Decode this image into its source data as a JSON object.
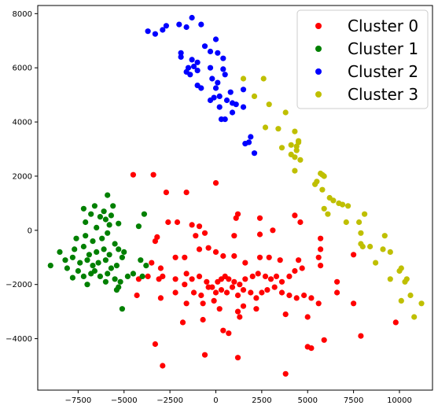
{
  "chart_data": {
    "type": "scatter",
    "title": "",
    "xlabel": "",
    "ylabel": "",
    "xlim": [
      -9700,
      11800
    ],
    "ylim": [
      -5900,
      8300
    ],
    "xticks": [
      -7500,
      -5000,
      -2500,
      0,
      2500,
      5000,
      7500,
      10000
    ],
    "xtick_labels": [
      "−7500",
      "−5000",
      "−2500",
      "0",
      "2500",
      "5000",
      "7500",
      "10000"
    ],
    "yticks": [
      -4000,
      -2000,
      0,
      2000,
      4000,
      6000,
      8000
    ],
    "ytick_labels": [
      "−4000",
      "−2000",
      "0",
      "2000",
      "4000",
      "6000",
      "8000"
    ],
    "grid": false,
    "legend_position": "top-right",
    "series": [
      {
        "name": "Cluster 0",
        "color": "#ff0000",
        "points": [
          [
            -4500,
            2050
          ],
          [
            -3400,
            2050
          ],
          [
            -2700,
            1400
          ],
          [
            -1600,
            1400
          ],
          [
            0,
            1750
          ],
          [
            -3200,
            -250
          ],
          [
            -3300,
            -400
          ],
          [
            -2600,
            300
          ],
          [
            -2100,
            300
          ],
          [
            -1300,
            200
          ],
          [
            -900,
            150
          ],
          [
            -1100,
            -200
          ],
          [
            -600,
            -100
          ],
          [
            1100,
            450
          ],
          [
            1200,
            600
          ],
          [
            2400,
            450
          ],
          [
            1000,
            -200
          ],
          [
            2400,
            -150
          ],
          [
            3100,
            0
          ],
          [
            4300,
            550
          ],
          [
            4600,
            300
          ],
          [
            5700,
            -300
          ],
          [
            5700,
            -700
          ],
          [
            5600,
            -1000
          ],
          [
            5700,
            -1300
          ],
          [
            7500,
            -900
          ],
          [
            -3500,
            -1200
          ],
          [
            -3000,
            -1400
          ],
          [
            -2200,
            -1000
          ],
          [
            -1700,
            -1000
          ],
          [
            -900,
            -700
          ],
          [
            -400,
            -650
          ],
          [
            0,
            -800
          ],
          [
            400,
            -950
          ],
          [
            1000,
            -950
          ],
          [
            1600,
            -1200
          ],
          [
            2400,
            -1000
          ],
          [
            2900,
            -1000
          ],
          [
            3500,
            -1100
          ],
          [
            4500,
            -1100
          ],
          [
            -4200,
            -1800
          ],
          [
            -3700,
            -1700
          ],
          [
            -3100,
            -1800
          ],
          [
            -2900,
            -1700
          ],
          [
            -2200,
            -1800
          ],
          [
            -1600,
            -1600
          ],
          [
            -1300,
            -1800
          ],
          [
            -900,
            -1700
          ],
          [
            -500,
            -1900
          ],
          [
            -200,
            -2100
          ],
          [
            100,
            -1900
          ],
          [
            300,
            -1800
          ],
          [
            500,
            -1700
          ],
          [
            700,
            -1800
          ],
          [
            1000,
            -1900
          ],
          [
            1300,
            -2000
          ],
          [
            1600,
            -1800
          ],
          [
            2000,
            -1700
          ],
          [
            2300,
            -1600
          ],
          [
            2700,
            -1700
          ],
          [
            3000,
            -1800
          ],
          [
            3300,
            -1700
          ],
          [
            3600,
            -1900
          ],
          [
            4000,
            -1700
          ],
          [
            4300,
            -1500
          ],
          [
            4700,
            -1400
          ],
          [
            -4300,
            -2400
          ],
          [
            -3000,
            -2500
          ],
          [
            -2200,
            -2300
          ],
          [
            -1700,
            -2000
          ],
          [
            -1200,
            -2300
          ],
          [
            -800,
            -2400
          ],
          [
            -400,
            -2100
          ],
          [
            0,
            -2300
          ],
          [
            300,
            -2200
          ],
          [
            600,
            -2300
          ],
          [
            900,
            -2100
          ],
          [
            1200,
            -2400
          ],
          [
            1500,
            -2200
          ],
          [
            1900,
            -2300
          ],
          [
            2200,
            -2500
          ],
          [
            2500,
            -2300
          ],
          [
            2800,
            -2200
          ],
          [
            3200,
            -2100
          ],
          [
            3600,
            -2300
          ],
          [
            4000,
            -2400
          ],
          [
            4400,
            -2500
          ],
          [
            4800,
            -2400
          ],
          [
            5200,
            -2500
          ],
          [
            5600,
            -2700
          ],
          [
            6600,
            -2300
          ],
          [
            7500,
            -2700
          ],
          [
            -1600,
            -2700
          ],
          [
            -700,
            -2700
          ],
          [
            -100,
            -2600
          ],
          [
            200,
            -2900
          ],
          [
            1200,
            -3000
          ],
          [
            1500,
            -2800
          ],
          [
            2200,
            -2900
          ],
          [
            3800,
            -3100
          ],
          [
            5000,
            -3200
          ],
          [
            6600,
            -1900
          ],
          [
            9800,
            -3400
          ],
          [
            -700,
            -3300
          ],
          [
            -1800,
            -3400
          ],
          [
            400,
            -3700
          ],
          [
            700,
            -3800
          ],
          [
            1300,
            -3200
          ],
          [
            -3300,
            -4200
          ],
          [
            -600,
            -4600
          ],
          [
            1200,
            -4700
          ],
          [
            5000,
            -4300
          ],
          [
            5200,
            -4350
          ],
          [
            5900,
            -4050
          ],
          [
            7900,
            -3900
          ],
          [
            -2900,
            -5000
          ],
          [
            3800,
            -5300
          ]
        ]
      },
      {
        "name": "Cluster 1",
        "color": "#008000",
        "points": [
          [
            -5900,
            1300
          ],
          [
            -6600,
            900
          ],
          [
            -7200,
            800
          ],
          [
            -6100,
            700
          ],
          [
            -5600,
            900
          ],
          [
            -6800,
            600
          ],
          [
            -6300,
            500
          ],
          [
            -6000,
            400
          ],
          [
            -5700,
            550
          ],
          [
            -3900,
            600
          ],
          [
            -7100,
            300
          ],
          [
            -6500,
            100
          ],
          [
            -5800,
            200
          ],
          [
            -5300,
            250
          ],
          [
            -4200,
            150
          ],
          [
            -7600,
            -300
          ],
          [
            -7100,
            -200
          ],
          [
            -6700,
            -400
          ],
          [
            -6200,
            -300
          ],
          [
            -5900,
            -100
          ],
          [
            -5500,
            -500
          ],
          [
            -8500,
            -800
          ],
          [
            -7700,
            -700
          ],
          [
            -7200,
            -600
          ],
          [
            -6900,
            -900
          ],
          [
            -6500,
            -800
          ],
          [
            -6100,
            -700
          ],
          [
            -5800,
            -900
          ],
          [
            -5300,
            -700
          ],
          [
            -5000,
            -800
          ],
          [
            -8200,
            -1100
          ],
          [
            -7800,
            -1000
          ],
          [
            -7400,
            -1200
          ],
          [
            -7000,
            -1100
          ],
          [
            -6700,
            -1300
          ],
          [
            -6400,
            -1200
          ],
          [
            -6000,
            -1100
          ],
          [
            -5700,
            -1400
          ],
          [
            -5400,
            -1300
          ],
          [
            -5100,
            -1000
          ],
          [
            -4100,
            -1100
          ],
          [
            -3800,
            -1300
          ],
          [
            -9000,
            -1300
          ],
          [
            -8100,
            -1400
          ],
          [
            -7500,
            -1500
          ],
          [
            -7200,
            -1700
          ],
          [
            -6800,
            -1600
          ],
          [
            -6600,
            -1500
          ],
          [
            -6300,
            -1700
          ],
          [
            -5900,
            -1600
          ],
          [
            -5500,
            -1800
          ],
          [
            -5200,
            -1900
          ],
          [
            -4800,
            -1700
          ],
          [
            -4500,
            -1600
          ],
          [
            -4000,
            -1700
          ],
          [
            -7800,
            -1750
          ],
          [
            -7000,
            -2000
          ],
          [
            -6000,
            -1900
          ],
          [
            -5300,
            -2100
          ],
          [
            -5400,
            -2200
          ],
          [
            -5100,
            -2900
          ]
        ]
      },
      {
        "name": "Cluster 2",
        "color": "#0000ff",
        "points": [
          [
            -1300,
            7850
          ],
          [
            -800,
            7600
          ],
          [
            -1600,
            7500
          ],
          [
            -2000,
            7600
          ],
          [
            -2700,
            7550
          ],
          [
            -2900,
            7400
          ],
          [
            -3300,
            7250
          ],
          [
            -3700,
            7350
          ],
          [
            0,
            7050
          ],
          [
            -300,
            6600
          ],
          [
            100,
            6550
          ],
          [
            400,
            6350
          ],
          [
            -600,
            6800
          ],
          [
            -1900,
            6550
          ],
          [
            -1900,
            6400
          ],
          [
            -1300,
            6300
          ],
          [
            -1000,
            6200
          ],
          [
            -1200,
            6050
          ],
          [
            -1500,
            6000
          ],
          [
            -1600,
            5850
          ],
          [
            -1400,
            5750
          ],
          [
            -1000,
            5900
          ],
          [
            -300,
            6000
          ],
          [
            400,
            5950
          ],
          [
            500,
            5750
          ],
          [
            -200,
            5600
          ],
          [
            100,
            5450
          ],
          [
            -800,
            5250
          ],
          [
            -1000,
            5350
          ],
          [
            0,
            5250
          ],
          [
            1500,
            5200
          ],
          [
            800,
            5100
          ],
          [
            200,
            4950
          ],
          [
            -300,
            4800
          ],
          [
            -100,
            4900
          ],
          [
            600,
            4800
          ],
          [
            900,
            4700
          ],
          [
            1100,
            4650
          ],
          [
            1500,
            4550
          ],
          [
            200,
            4550
          ],
          [
            900,
            4350
          ],
          [
            300,
            4100
          ],
          [
            500,
            4100
          ],
          [
            1800,
            3250
          ],
          [
            1900,
            3450
          ],
          [
            1600,
            3200
          ],
          [
            2100,
            2850
          ]
        ]
      },
      {
        "name": "Cluster 3",
        "color": "#bfbf00",
        "points": [
          [
            1500,
            5600
          ],
          [
            2600,
            5600
          ],
          [
            2100,
            4950
          ],
          [
            2900,
            4650
          ],
          [
            3800,
            4350
          ],
          [
            2700,
            3800
          ],
          [
            3400,
            3750
          ],
          [
            4300,
            3650
          ],
          [
            4100,
            3150
          ],
          [
            4500,
            3250
          ],
          [
            4400,
            2950
          ],
          [
            3600,
            3050
          ],
          [
            4100,
            2800
          ],
          [
            4300,
            2700
          ],
          [
            4600,
            2600
          ],
          [
            4500,
            3300
          ],
          [
            4400,
            3100
          ],
          [
            4300,
            2200
          ],
          [
            5700,
            2100
          ],
          [
            5800,
            2050
          ],
          [
            5900,
            2000
          ],
          [
            5500,
            1800
          ],
          [
            5400,
            1700
          ],
          [
            5800,
            1500
          ],
          [
            6200,
            1200
          ],
          [
            6400,
            1100
          ],
          [
            6700,
            1000
          ],
          [
            6900,
            950
          ],
          [
            7200,
            900
          ],
          [
            5900,
            800
          ],
          [
            6100,
            600
          ],
          [
            7100,
            300
          ],
          [
            7800,
            300
          ],
          [
            8100,
            600
          ],
          [
            7900,
            -100
          ],
          [
            8400,
            -600
          ],
          [
            7900,
            -500
          ],
          [
            8000,
            -600
          ],
          [
            8700,
            -1200
          ],
          [
            9200,
            -200
          ],
          [
            9100,
            -700
          ],
          [
            9500,
            -800
          ],
          [
            10000,
            -1500
          ],
          [
            10100,
            -1400
          ],
          [
            9500,
            -1800
          ],
          [
            10300,
            -1900
          ],
          [
            10400,
            -1800
          ],
          [
            11200,
            -2700
          ],
          [
            10100,
            -2600
          ],
          [
            10600,
            -2400
          ],
          [
            10800,
            -3200
          ]
        ]
      }
    ],
    "legend_entries": [
      "Cluster 0",
      "Cluster 1",
      "Cluster 2",
      "Cluster 3"
    ]
  }
}
